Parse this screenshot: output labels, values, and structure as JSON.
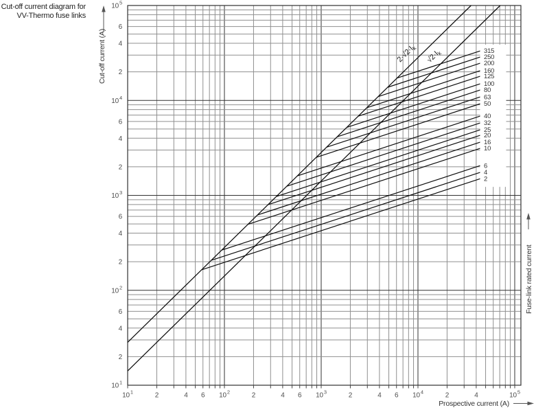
{
  "title": {
    "line1": "Cut-off current diagram for",
    "line2": "VV-Thermo fuse links"
  },
  "axes": {
    "y_label": "Cut-off current (A)",
    "x_label": "Prospective current (A)",
    "right_label": "Fuse-link rated current",
    "x_ticks": [
      {
        "v": 10,
        "t": "10",
        "sup": "1"
      },
      {
        "v": 20,
        "t": "2"
      },
      {
        "v": 40,
        "t": "4"
      },
      {
        "v": 60,
        "t": "6"
      },
      {
        "v": 100,
        "t": "10",
        "sup": "2"
      },
      {
        "v": 200,
        "t": "2"
      },
      {
        "v": 400,
        "t": "4"
      },
      {
        "v": 600,
        "t": "6"
      },
      {
        "v": 1000,
        "t": "10",
        "sup": "3"
      },
      {
        "v": 2000,
        "t": "2"
      },
      {
        "v": 4000,
        "t": "4"
      },
      {
        "v": 6000,
        "t": "6"
      },
      {
        "v": 10000,
        "t": "10",
        "sup": "4"
      },
      {
        "v": 20000,
        "t": "2"
      },
      {
        "v": 40000,
        "t": "4"
      },
      {
        "v": 100000,
        "t": "10",
        "sup": "5"
      }
    ],
    "y_ticks": [
      {
        "v": 100000,
        "t": "10",
        "sup": "5"
      },
      {
        "v": 60000,
        "t": "6"
      },
      {
        "v": 40000,
        "t": "4"
      },
      {
        "v": 20000,
        "t": "2"
      },
      {
        "v": 10000,
        "t": "10",
        "sup": "4"
      },
      {
        "v": 6000,
        "t": "6"
      },
      {
        "v": 4000,
        "t": "4"
      },
      {
        "v": 2000,
        "t": "2"
      },
      {
        "v": 1000,
        "t": "10",
        "sup": "3"
      },
      {
        "v": 600,
        "t": "6"
      },
      {
        "v": 400,
        "t": "4"
      },
      {
        "v": 200,
        "t": "2"
      },
      {
        "v": 100,
        "t": "10",
        "sup": "2"
      },
      {
        "v": 60,
        "t": "6"
      },
      {
        "v": 40,
        "t": "4"
      },
      {
        "v": 20,
        "t": "2"
      },
      {
        "v": 10,
        "t": "10",
        "sup": "1"
      }
    ]
  },
  "chart_data": {
    "type": "line",
    "title": "Cut-off current diagram for VV-Thermo fuse links",
    "xlabel": "Prospective current (A)",
    "ylabel": "Cut-off current (A)",
    "xlim": [
      10,
      100000
    ],
    "ylim": [
      10,
      100000
    ],
    "scale": "log-log",
    "grid": "minor log gridlines 2-9 each decade",
    "reference_lines": [
      {
        "label_main": "2·√2·I",
        "label_sub": "k",
        "factor": 2.8284
      },
      {
        "label_main": "√2·I",
        "label_sub": "k",
        "factor": 1.4142
      }
    ],
    "fuse_curves": {
      "slope_log_log": 0.3333,
      "prospective_at_end": 44200,
      "note": "each curve branches off the 2·√2·Ik line and rises with slope 1/3 to its rated-current label",
      "ratings": [
        {
          "rating": "315",
          "cutoff_at_end": 33300
        },
        {
          "rating": "250",
          "cutoff_at_end": 28700
        },
        {
          "rating": "200",
          "cutoff_at_end": 24700
        },
        {
          "rating": "160",
          "cutoff_at_end": 20600
        },
        {
          "rating": "125",
          "cutoff_at_end": 18000
        },
        {
          "rating": "100",
          "cutoff_at_end": 15000
        },
        {
          "rating": "80",
          "cutoff_at_end": 12900
        },
        {
          "rating": "63",
          "cutoff_at_end": 10900
        },
        {
          "rating": "50",
          "cutoff_at_end": 9240
        },
        {
          "rating": "40",
          "cutoff_at_end": 6850
        },
        {
          "rating": "32",
          "cutoff_at_end": 5800
        },
        {
          "rating": "25",
          "cutoff_at_end": 4910
        },
        {
          "rating": "20",
          "cutoff_at_end": 4300
        },
        {
          "rating": "16",
          "cutoff_at_end": 3640
        },
        {
          "rating": "10",
          "cutoff_at_end": 3130
        },
        {
          "rating": "6",
          "cutoff_at_end": 2060
        },
        {
          "rating": "4",
          "cutoff_at_end": 1750
        },
        {
          "rating": "2",
          "cutoff_at_end": 1500
        }
      ]
    }
  }
}
